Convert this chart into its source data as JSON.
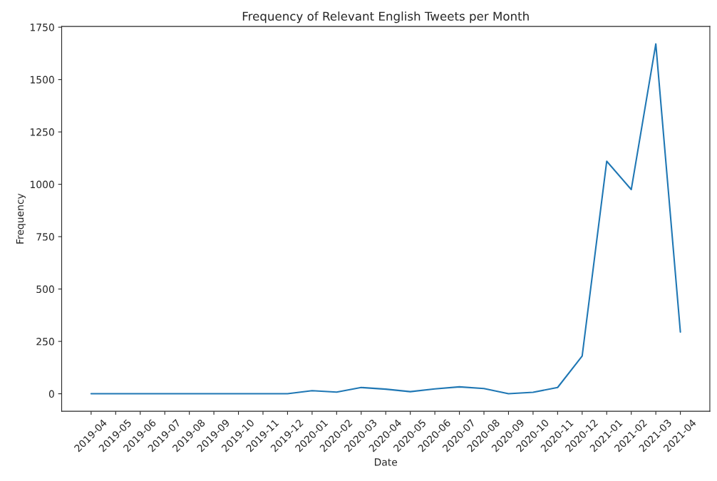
{
  "chart_data": {
    "type": "line",
    "title": "Frequency of Relevant English Tweets per Month",
    "xlabel": "Date",
    "ylabel": "Frequency",
    "categories": [
      "2019-04",
      "2019-05",
      "2019-06",
      "2019-07",
      "2019-08",
      "2019-09",
      "2019-10",
      "2019-11",
      "2019-12",
      "2020-01",
      "2020-02",
      "2020-03",
      "2020-04",
      "2020-05",
      "2020-06",
      "2020-07",
      "2020-08",
      "2020-09",
      "2020-10",
      "2020-11",
      "2020-12",
      "2021-01",
      "2021-02",
      "2021-03",
      "2021-04"
    ],
    "series": [
      {
        "color": "#1f77b4",
        "values": [
          0,
          0,
          0,
          0,
          0,
          0,
          0,
          0,
          0,
          15,
          8,
          30,
          22,
          10,
          23,
          33,
          25,
          0,
          7,
          30,
          180,
          1110,
          975,
          1670,
          295
        ]
      }
    ],
    "ylim": [
      -83.5,
      1753.5
    ],
    "yticks": [
      0,
      250,
      500,
      750,
      1000,
      1250,
      1500,
      1750
    ],
    "grid": false,
    "legend": false,
    "marker": "none",
    "line_style": "solid"
  }
}
